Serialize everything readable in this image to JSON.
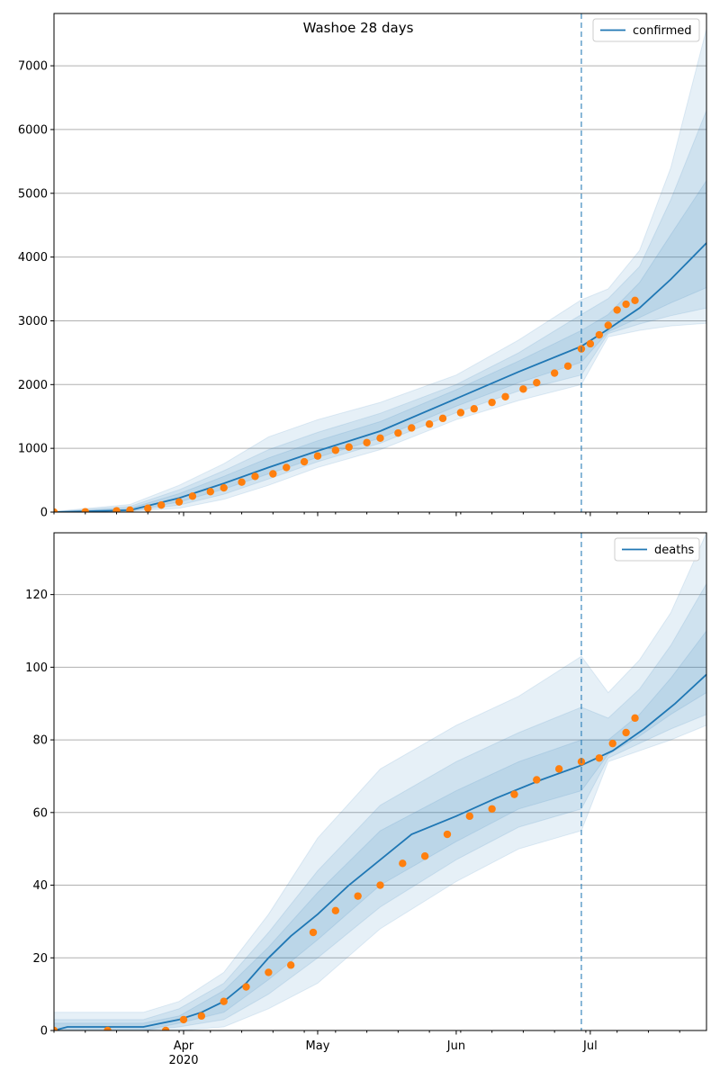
{
  "figure": {
    "title": "Washoe 28 days",
    "colors": {
      "line": "#1f77b4",
      "points": "#ff7f0e",
      "band": "#1f77b4",
      "grid": "#b0b0b0",
      "forecast_line": "#1f77b4"
    }
  },
  "chart_data": [
    {
      "type": "line",
      "title": "Washoe 28 days",
      "legend": {
        "label": "confirmed",
        "placement": "top-right"
      },
      "x_axis": {
        "type": "date",
        "range": [
          "2020-03-03",
          "2020-07-27"
        ],
        "major_ticks": [
          {
            "date": "2020-04-01",
            "label": "Apr",
            "sublabel": "2020"
          },
          {
            "date": "2020-05-01",
            "label": "May",
            "sublabel": ""
          },
          {
            "date": "2020-06-01",
            "label": "Jun",
            "sublabel": ""
          },
          {
            "date": "2020-07-01",
            "label": "Jul",
            "sublabel": ""
          }
        ],
        "minor_tick_interval_days": 7,
        "tick_labels_shown": false
      },
      "ylim": [
        0,
        7820
      ],
      "yticks": [
        0,
        1000,
        2000,
        3000,
        4000,
        5000,
        6000,
        7000
      ],
      "grid": "y-major",
      "forecast_start": "2020-06-29",
      "model_line": {
        "name": "confirmed",
        "x": [
          "2020-03-03",
          "2020-03-20",
          "2020-03-31",
          "2020-04-10",
          "2020-04-20",
          "2020-05-01",
          "2020-05-15",
          "2020-06-01",
          "2020-06-15",
          "2020-06-29",
          "2020-07-05",
          "2020-07-12",
          "2020-07-19",
          "2020-07-27"
        ],
        "y": [
          0,
          30,
          220,
          450,
          700,
          960,
          1270,
          1780,
          2200,
          2600,
          2870,
          3200,
          3650,
          4220
        ]
      },
      "bands": [
        {
          "x": [
            "2020-03-03",
            "2020-03-20",
            "2020-03-31",
            "2020-04-10",
            "2020-04-20",
            "2020-05-01",
            "2020-05-15",
            "2020-06-01",
            "2020-06-15",
            "2020-06-29",
            "2020-07-05",
            "2020-07-12",
            "2020-07-19",
            "2020-07-27"
          ],
          "lower": [
            0,
            10,
            60,
            200,
            420,
            700,
            980,
            1450,
            1750,
            2000,
            2750,
            2850,
            2920,
            2960
          ],
          "upper": [
            10,
            120,
            420,
            760,
            1180,
            1450,
            1720,
            2150,
            2700,
            3330,
            3500,
            4100,
            5400,
            7580
          ]
        },
        {
          "x": [
            "2020-03-03",
            "2020-03-20",
            "2020-03-31",
            "2020-04-10",
            "2020-04-20",
            "2020-05-01",
            "2020-05-15",
            "2020-06-01",
            "2020-06-15",
            "2020-06-29",
            "2020-07-05",
            "2020-07-12",
            "2020-07-19",
            "2020-07-27"
          ],
          "lower": [
            0,
            15,
            110,
            280,
            520,
            790,
            1080,
            1560,
            1900,
            2150,
            2800,
            2950,
            3080,
            3200
          ],
          "upper": [
            5,
            90,
            350,
            650,
            980,
            1250,
            1550,
            2000,
            2500,
            3100,
            3350,
            3850,
            4900,
            6300
          ]
        },
        {
          "x": [
            "2020-03-03",
            "2020-03-20",
            "2020-03-31",
            "2020-04-10",
            "2020-04-20",
            "2020-05-01",
            "2020-05-15",
            "2020-06-01",
            "2020-06-15",
            "2020-06-29",
            "2020-07-05",
            "2020-07-12",
            "2020-07-19",
            "2020-07-27"
          ],
          "lower": [
            0,
            20,
            160,
            360,
            600,
            860,
            1160,
            1660,
            2030,
            2350,
            2830,
            3050,
            3280,
            3520
          ],
          "upper": [
            3,
            60,
            290,
            560,
            850,
            1120,
            1420,
            1920,
            2370,
            2850,
            3100,
            3600,
            4350,
            5200
          ]
        }
      ],
      "observed": {
        "name": "observed confirmed",
        "x": [
          "2020-03-03",
          "2020-03-10",
          "2020-03-17",
          "2020-03-20",
          "2020-03-24",
          "2020-03-27",
          "2020-03-31",
          "2020-04-03",
          "2020-04-07",
          "2020-04-10",
          "2020-04-14",
          "2020-04-17",
          "2020-04-21",
          "2020-04-24",
          "2020-04-28",
          "2020-05-01",
          "2020-05-05",
          "2020-05-08",
          "2020-05-12",
          "2020-05-15",
          "2020-05-19",
          "2020-05-22",
          "2020-05-26",
          "2020-05-29",
          "2020-06-02",
          "2020-06-05",
          "2020-06-09",
          "2020-06-12",
          "2020-06-16",
          "2020-06-19",
          "2020-06-23",
          "2020-06-26",
          "2020-06-29",
          "2020-07-01",
          "2020-07-03",
          "2020-07-05",
          "2020-07-07",
          "2020-07-09",
          "2020-07-11"
        ],
        "y": [
          0,
          5,
          20,
          30,
          60,
          110,
          160,
          250,
          320,
          380,
          470,
          560,
          600,
          700,
          790,
          880,
          970,
          1020,
          1090,
          1160,
          1240,
          1320,
          1380,
          1470,
          1560,
          1620,
          1720,
          1810,
          1930,
          2030,
          2180,
          2290,
          2560,
          2640,
          2780,
          2930,
          3170,
          3260,
          3320
        ]
      }
    },
    {
      "type": "line",
      "title": "",
      "legend": {
        "label": "deaths",
        "placement": "top-right"
      },
      "x_axis": {
        "type": "date",
        "range": [
          "2020-03-03",
          "2020-07-27"
        ],
        "major_ticks": [
          {
            "date": "2020-04-01",
            "label": "Apr",
            "sublabel": "2020"
          },
          {
            "date": "2020-05-01",
            "label": "May",
            "sublabel": ""
          },
          {
            "date": "2020-06-01",
            "label": "Jun",
            "sublabel": ""
          },
          {
            "date": "2020-07-01",
            "label": "Jul",
            "sublabel": ""
          }
        ],
        "minor_tick_interval_days": 7,
        "tick_labels_shown": true
      },
      "ylim": [
        0,
        137
      ],
      "yticks": [
        0,
        20,
        40,
        60,
        80,
        100,
        120
      ],
      "grid": "y-major",
      "forecast_start": "2020-06-29",
      "model_line": {
        "name": "deaths",
        "x": [
          "2020-03-03",
          "2020-03-06",
          "2020-03-23",
          "2020-03-27",
          "2020-03-31",
          "2020-04-05",
          "2020-04-10",
          "2020-04-15",
          "2020-04-20",
          "2020-04-25",
          "2020-05-01",
          "2020-05-08",
          "2020-05-15",
          "2020-05-22",
          "2020-06-01",
          "2020-06-10",
          "2020-06-20",
          "2020-06-29",
          "2020-07-06",
          "2020-07-13",
          "2020-07-20",
          "2020-07-27"
        ],
        "y": [
          0,
          1,
          1,
          2,
          3,
          5,
          8,
          13,
          20,
          26,
          32,
          40,
          47,
          54,
          59,
          64,
          69,
          73,
          77,
          83,
          90,
          98
        ]
      },
      "bands": [
        {
          "x": [
            "2020-03-03",
            "2020-03-23",
            "2020-03-31",
            "2020-04-10",
            "2020-04-20",
            "2020-05-01",
            "2020-05-15",
            "2020-06-01",
            "2020-06-15",
            "2020-06-29",
            "2020-07-05",
            "2020-07-12",
            "2020-07-19",
            "2020-07-27"
          ],
          "lower": [
            0,
            0,
            0,
            1,
            6,
            13,
            28,
            41,
            50,
            55,
            74,
            77,
            80,
            84
          ],
          "upper": [
            5,
            5,
            8,
            16,
            32,
            53,
            72,
            84,
            92,
            103,
            93,
            102,
            115,
            137
          ]
        },
        {
          "x": [
            "2020-03-03",
            "2020-03-23",
            "2020-03-31",
            "2020-04-10",
            "2020-04-20",
            "2020-05-01",
            "2020-05-15",
            "2020-06-01",
            "2020-06-15",
            "2020-06-29",
            "2020-07-05",
            "2020-07-12",
            "2020-07-19",
            "2020-07-27"
          ],
          "lower": [
            0,
            0,
            1,
            3,
            10,
            20,
            34,
            47,
            56,
            61,
            75,
            79,
            83,
            87
          ],
          "upper": [
            3,
            3,
            6,
            13,
            27,
            44,
            62,
            74,
            82,
            89,
            86,
            94,
            106,
            123
          ]
        },
        {
          "x": [
            "2020-03-03",
            "2020-03-23",
            "2020-03-31",
            "2020-04-10",
            "2020-04-20",
            "2020-05-01",
            "2020-05-15",
            "2020-06-01",
            "2020-06-15",
            "2020-06-29",
            "2020-07-05",
            "2020-07-12",
            "2020-07-19",
            "2020-07-27"
          ],
          "lower": [
            0,
            0,
            2,
            5,
            14,
            25,
            40,
            52,
            61,
            66,
            76,
            81,
            87,
            93
          ],
          "upper": [
            2,
            2,
            4,
            11,
            23,
            38,
            55,
            66,
            74,
            80,
            80,
            87,
            97,
            110
          ]
        }
      ],
      "observed": {
        "name": "observed deaths",
        "x": [
          "2020-03-03",
          "2020-03-15",
          "2020-03-28",
          "2020-04-01",
          "2020-04-05",
          "2020-04-10",
          "2020-04-15",
          "2020-04-20",
          "2020-04-25",
          "2020-04-30",
          "2020-05-05",
          "2020-05-10",
          "2020-05-15",
          "2020-05-20",
          "2020-05-25",
          "2020-05-30",
          "2020-06-04",
          "2020-06-09",
          "2020-06-14",
          "2020-06-19",
          "2020-06-24",
          "2020-06-29",
          "2020-07-03",
          "2020-07-06",
          "2020-07-09",
          "2020-07-11"
        ],
        "y": [
          0,
          0,
          0,
          3,
          4,
          8,
          12,
          16,
          18,
          27,
          33,
          37,
          40,
          46,
          48,
          54,
          59,
          61,
          65,
          69,
          72,
          74,
          75,
          79,
          82,
          86
        ]
      }
    }
  ]
}
